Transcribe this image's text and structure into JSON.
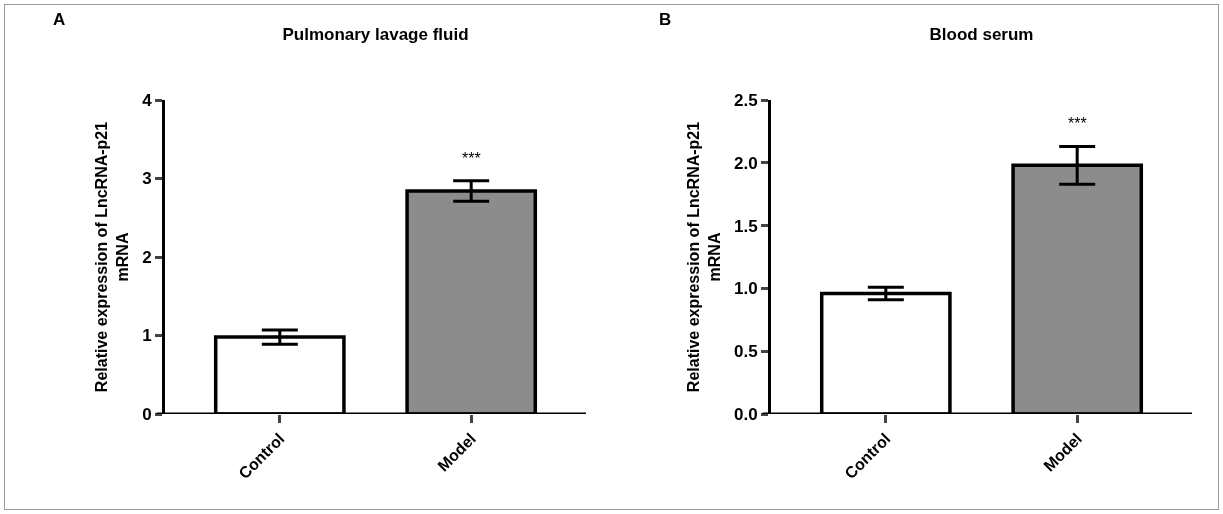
{
  "chart_data": [
    {
      "type": "bar",
      "title": "Pulmonary lavage fluid",
      "ylabel": "Relative expression of LncRNA-p21 mRNA",
      "categories": [
        "Control",
        "Model"
      ],
      "values": [
        0.98,
        2.84
      ],
      "errors": [
        0.09,
        0.13
      ],
      "colors": [
        "#ffffff",
        "#8c8c8c"
      ],
      "ylim": [
        0,
        4
      ],
      "yticks": [
        0,
        1,
        2,
        3,
        4
      ],
      "grid": false,
      "annotations": [
        "A",
        "***"
      ]
    },
    {
      "type": "bar",
      "title": "Blood serum",
      "ylabel": "Relative expression of LncRNA-p21 mRNA",
      "categories": [
        "Control",
        "Model"
      ],
      "values": [
        0.96,
        1.98
      ],
      "errors": [
        0.05,
        0.15
      ],
      "colors": [
        "#ffffff",
        "#8c8c8c"
      ],
      "ylim": [
        0,
        2.5
      ],
      "yticks": [
        {
          "value": 0,
          "label": "0.0"
        },
        0.5,
        {
          "value": 1,
          "label": "1.0"
        },
        1.5,
        {
          "value": 2,
          "label": "2.0"
        },
        2.5
      ],
      "grid": false,
      "annotations": [
        "B",
        "***"
      ]
    }
  ]
}
